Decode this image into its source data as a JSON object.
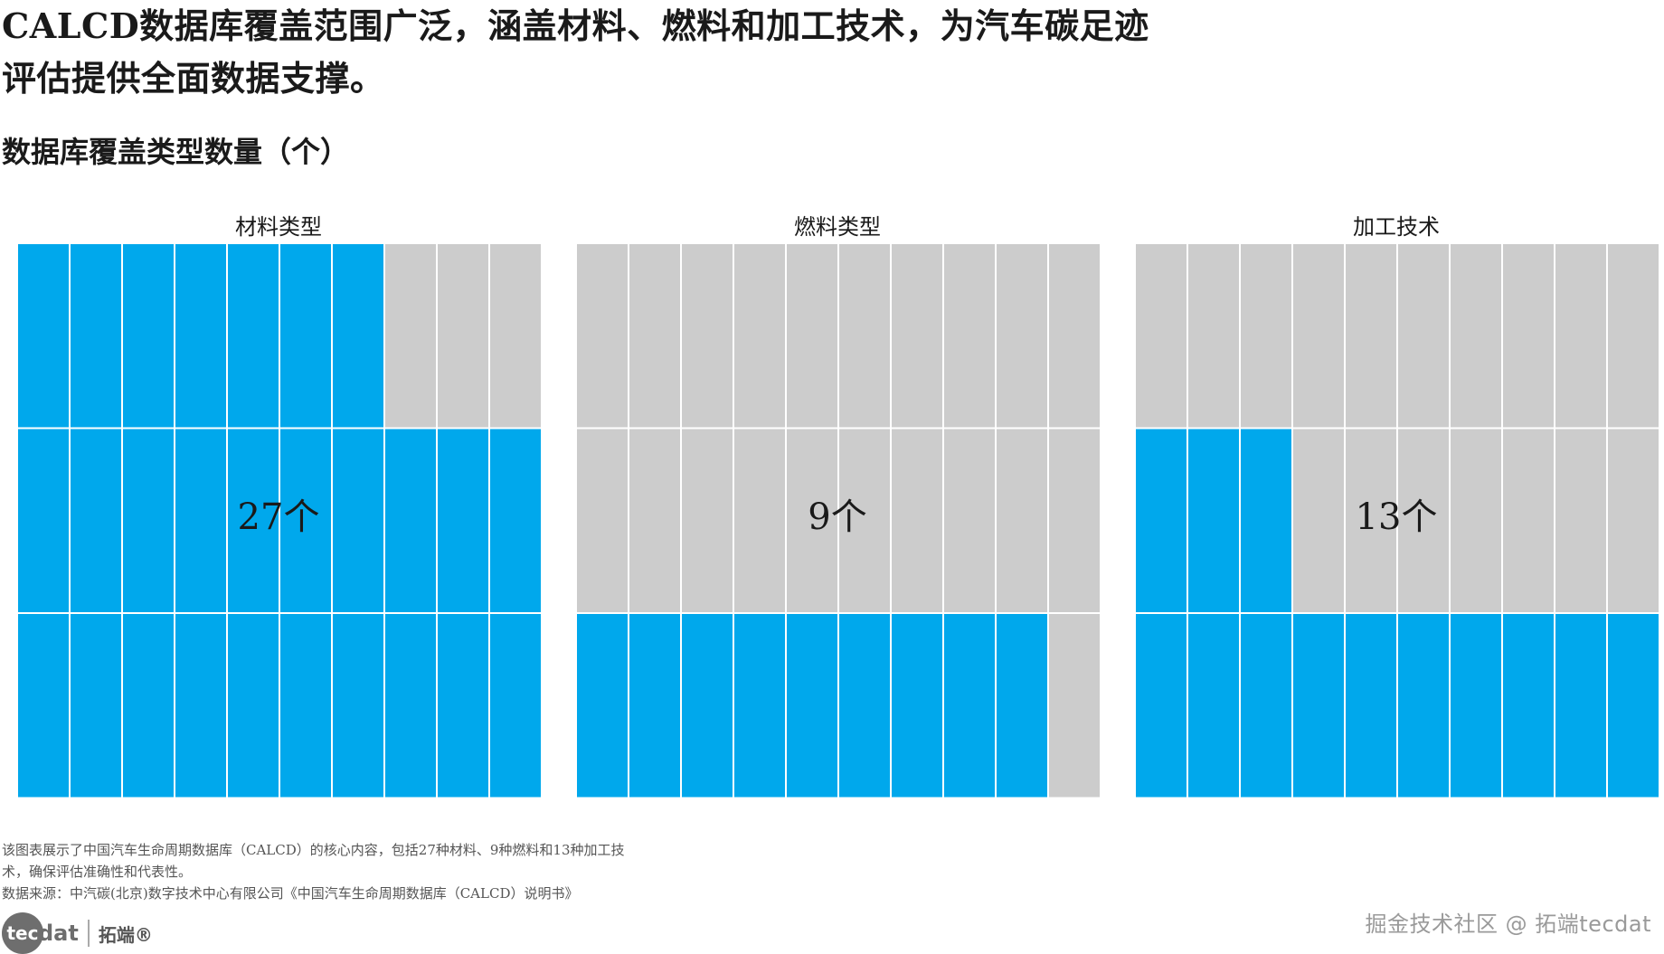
{
  "headline": "CALCD数据库覆盖范围广泛，涵盖材料、燃料和加工技术，为汽车碳足迹评估提供全面数据支撑。",
  "chart_data": {
    "type": "waffle",
    "title": "数据库覆盖类型数量（个）",
    "grid": {
      "rows": 3,
      "cols": 10
    },
    "colors": {
      "filled": "#00a8ec",
      "empty": "#cccccc",
      "line": "#ffffff"
    },
    "panels": [
      {
        "label": "材料类型",
        "value": 27,
        "count_label": "27个"
      },
      {
        "label": "燃料类型",
        "value": 9,
        "count_label": "9个"
      },
      {
        "label": "加工技术",
        "value": 13,
        "count_label": "13个"
      }
    ]
  },
  "footnote": {
    "description": "该图表展示了中国汽车生命周期数据库（CALCD）的核心内容，包括27种材料、9种燃料和13种加工技术，确保评估准确性和代表性。",
    "source": "数据来源：中汽碳(北京)数字技术中心有限公司《中国汽车生命周期数据库（CALCD）说明书》"
  },
  "logo": {
    "badge": "tec",
    "word": "dat",
    "cn": "拓端®"
  },
  "watermark": "掘金技术社区 @ 拓端tecdat"
}
